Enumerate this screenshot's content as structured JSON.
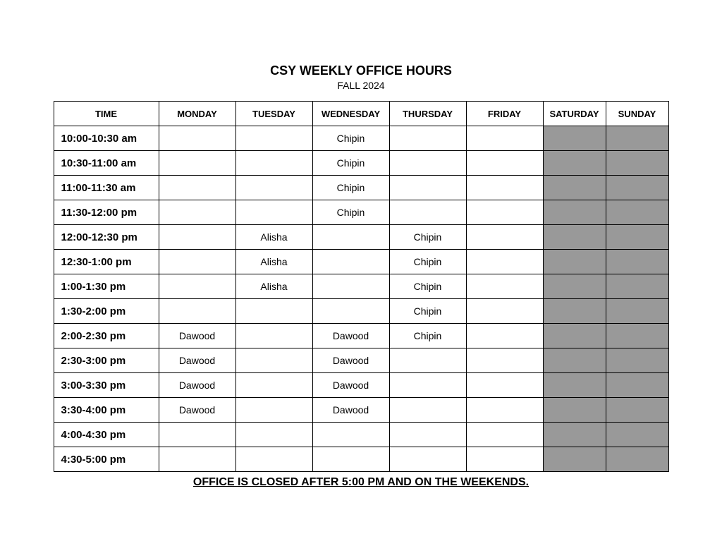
{
  "title": "CSY WEEKLY OFFICE HOURS",
  "subtitle": "FALL 2024",
  "columns": {
    "time": "TIME",
    "monday": "MONDAY",
    "tuesday": "TUESDAY",
    "wednesday": "WEDNESDAY",
    "thursday": "THURSDAY",
    "friday": "FRIDAY",
    "saturday": "SATURDAY",
    "sunday": "SUNDAY"
  },
  "weekend_color": "#999999",
  "rows": [
    {
      "time": "10:00-10:30 am",
      "mon": "",
      "tue": "",
      "wed": "Chipin",
      "thu": "",
      "fri": ""
    },
    {
      "time": "10:30-11:00 am",
      "mon": "",
      "tue": "",
      "wed": "Chipin",
      "thu": "",
      "fri": ""
    },
    {
      "time": "11:00-11:30 am",
      "mon": "",
      "tue": "",
      "wed": "Chipin",
      "thu": "",
      "fri": ""
    },
    {
      "time": "11:30-12:00 pm",
      "mon": "",
      "tue": "",
      "wed": "Chipin",
      "thu": "",
      "fri": ""
    },
    {
      "time": "12:00-12:30 pm",
      "mon": "",
      "tue": "Alisha",
      "wed": "",
      "thu": "Chipin",
      "fri": ""
    },
    {
      "time": "12:30-1:00 pm",
      "mon": "",
      "tue": "Alisha",
      "wed": "",
      "thu": "Chipin",
      "fri": ""
    },
    {
      "time": "1:00-1:30 pm",
      "mon": "",
      "tue": "Alisha",
      "wed": "",
      "thu": "Chipin",
      "fri": ""
    },
    {
      "time": "1:30-2:00 pm",
      "mon": "",
      "tue": "",
      "wed": "",
      "thu": "Chipin",
      "fri": ""
    },
    {
      "time": "2:00-2:30 pm",
      "mon": "Dawood",
      "tue": "",
      "wed": "Dawood",
      "thu": "Chipin",
      "fri": ""
    },
    {
      "time": "2:30-3:00 pm",
      "mon": "Dawood",
      "tue": "",
      "wed": "Dawood",
      "thu": "",
      "fri": ""
    },
    {
      "time": "3:00-3:30 pm",
      "mon": "Dawood",
      "tue": "",
      "wed": "Dawood",
      "thu": "",
      "fri": ""
    },
    {
      "time": "3:30-4:00 pm",
      "mon": "Dawood",
      "tue": "",
      "wed": "Dawood",
      "thu": "",
      "fri": ""
    },
    {
      "time": "4:00-4:30 pm",
      "mon": "",
      "tue": "",
      "wed": "",
      "thu": "",
      "fri": ""
    },
    {
      "time": "4:30-5:00 pm",
      "mon": "",
      "tue": "",
      "wed": "",
      "thu": "",
      "fri": ""
    }
  ],
  "footer": "OFFICE IS CLOSED AFTER 5:00 PM AND ON THE WEEKENDS."
}
